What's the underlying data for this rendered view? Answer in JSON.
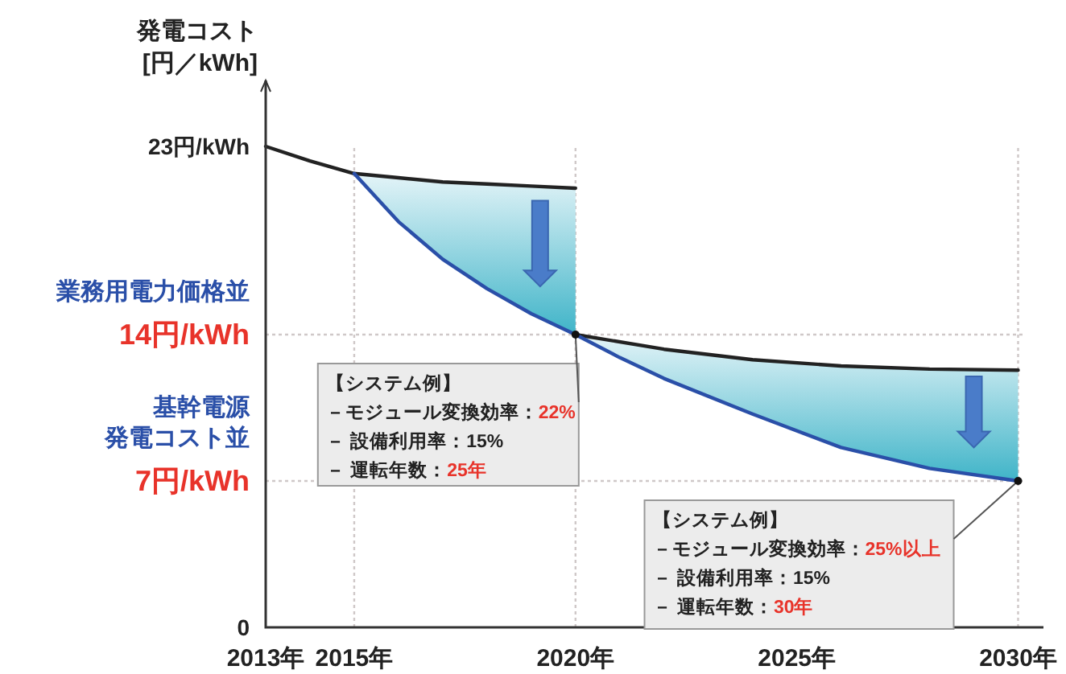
{
  "chart_data": {
    "type": "line",
    "ylabel": "発電コスト\n[円／kWh]",
    "xlim": [
      2013,
      2030.5
    ],
    "ylim": [
      0,
      26
    ],
    "xticks": [
      {
        "value": 2013,
        "label": "2013年"
      },
      {
        "value": 2015,
        "label": "2015年"
      },
      {
        "value": 2020,
        "label": "2020年"
      },
      {
        "value": 2025,
        "label": "2025年"
      },
      {
        "value": 2030,
        "label": "2030年"
      }
    ],
    "yticks": [
      0,
      {
        "value": 7,
        "label": "7円/kWh"
      },
      {
        "value": 14,
        "label": "14円/kWh"
      },
      {
        "value": 23,
        "label": "23円/kWh"
      }
    ],
    "series": [
      {
        "color": "#222222",
        "x": [
          2013,
          2014,
          2015,
          2016,
          2017,
          2018,
          2019,
          2020
        ],
        "values": [
          23,
          22.3,
          21.7,
          21.5,
          21.3,
          21.2,
          21.1,
          21.0
        ]
      },
      {
        "color": "#222222",
        "x": [
          2020,
          2022,
          2024,
          2026,
          2028,
          2030
        ],
        "values": [
          14,
          13.3,
          12.8,
          12.5,
          12.35,
          12.3
        ]
      },
      {
        "color": "#2a4fa8",
        "x": [
          2015,
          2016,
          2017,
          2018,
          2019,
          2020
        ],
        "values": [
          21.7,
          19.4,
          17.6,
          16.2,
          15.0,
          14
        ],
        "upper": [
          21.7,
          21.5,
          21.3,
          21.2,
          21.1,
          21.0
        ],
        "lower": [
          21.7,
          19.4,
          17.6,
          16.2,
          15.0,
          14
        ]
      },
      {
        "color": "#2a4fa8",
        "x": [
          2020,
          2021,
          2022,
          2024,
          2026,
          2028,
          2030
        ],
        "values": [
          14,
          12.9,
          11.9,
          10.2,
          8.6,
          7.6,
          7.0
        ],
        "upper": [
          14,
          13.6,
          13.3,
          12.8,
          12.5,
          12.35,
          12.3
        ],
        "lower": [
          14,
          12.9,
          11.9,
          10.2,
          8.6,
          7.6,
          7.0
        ]
      }
    ],
    "ref_lines": [
      {
        "axis": "x",
        "value": 2015,
        "color": "#cfc8c8",
        "line_style": "dotted"
      },
      {
        "axis": "x",
        "value": 2020,
        "color": "#cfc8c8",
        "line_style": "dotted"
      },
      {
        "axis": "x",
        "value": 2030,
        "color": "#cfc8c8",
        "line_style": "dotted"
      },
      {
        "axis": "y",
        "value": 14,
        "label": "業務用電力価格並",
        "color": "#cfc8c8",
        "line_style": "dotted"
      },
      {
        "axis": "y",
        "value": 7,
        "label": "基幹電源発電コスト並",
        "color": "#cfc8c8",
        "line_style": "dotted"
      }
    ],
    "annotations": [
      "【システム例】－モジュール変換効率：22%－ 設備利用率：15%－ 運転年数：25年",
      "【システム例】－モジュール変換効率：25%以上－ 設備利用率：15%－ 運転年数：30年"
    ],
    "grid": false
  }
}
